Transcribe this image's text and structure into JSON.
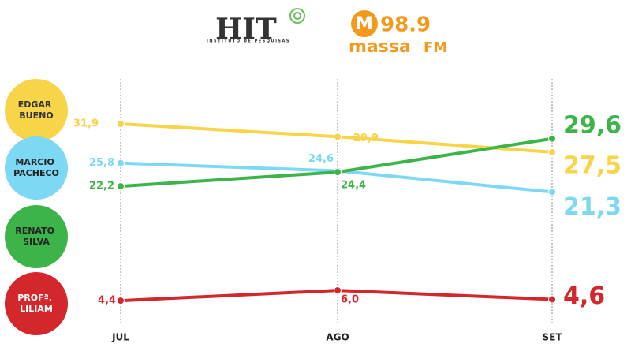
{
  "logos": {
    "institute": "HIT",
    "institute_subtitle": "INSTITUTO DE PESQUISAS",
    "radio_mark": "M",
    "radio_frequency": "98.9",
    "radio_name": "massa",
    "radio_band": "FM"
  },
  "chart_data": {
    "type": "line",
    "categories": [
      "JUL",
      "AGO",
      "SET"
    ],
    "ylim": [
      0,
      40
    ],
    "series": [
      {
        "name": "EDGAR BUENO",
        "color": "#f7d448",
        "values": [
          31.9,
          29.9,
          27.5
        ],
        "value_labels": [
          "31,9",
          "29,9",
          "27,5"
        ]
      },
      {
        "name": "MARCIO PACHECO",
        "color": "#7dd8f3",
        "values": [
          25.8,
          24.6,
          21.3
        ],
        "value_labels": [
          "25,8",
          "24,6",
          "21,3"
        ]
      },
      {
        "name": "RENATO SILVA",
        "color": "#3cb44a",
        "values": [
          22.2,
          24.4,
          29.6
        ],
        "value_labels": [
          "22,2",
          "24,4",
          "29,6"
        ]
      },
      {
        "name": "PROFª. LILIAM",
        "color": "#d4272c",
        "values": [
          4.4,
          6.0,
          4.6
        ],
        "value_labels": [
          "4,4",
          "6,0",
          "4,6"
        ]
      }
    ]
  }
}
